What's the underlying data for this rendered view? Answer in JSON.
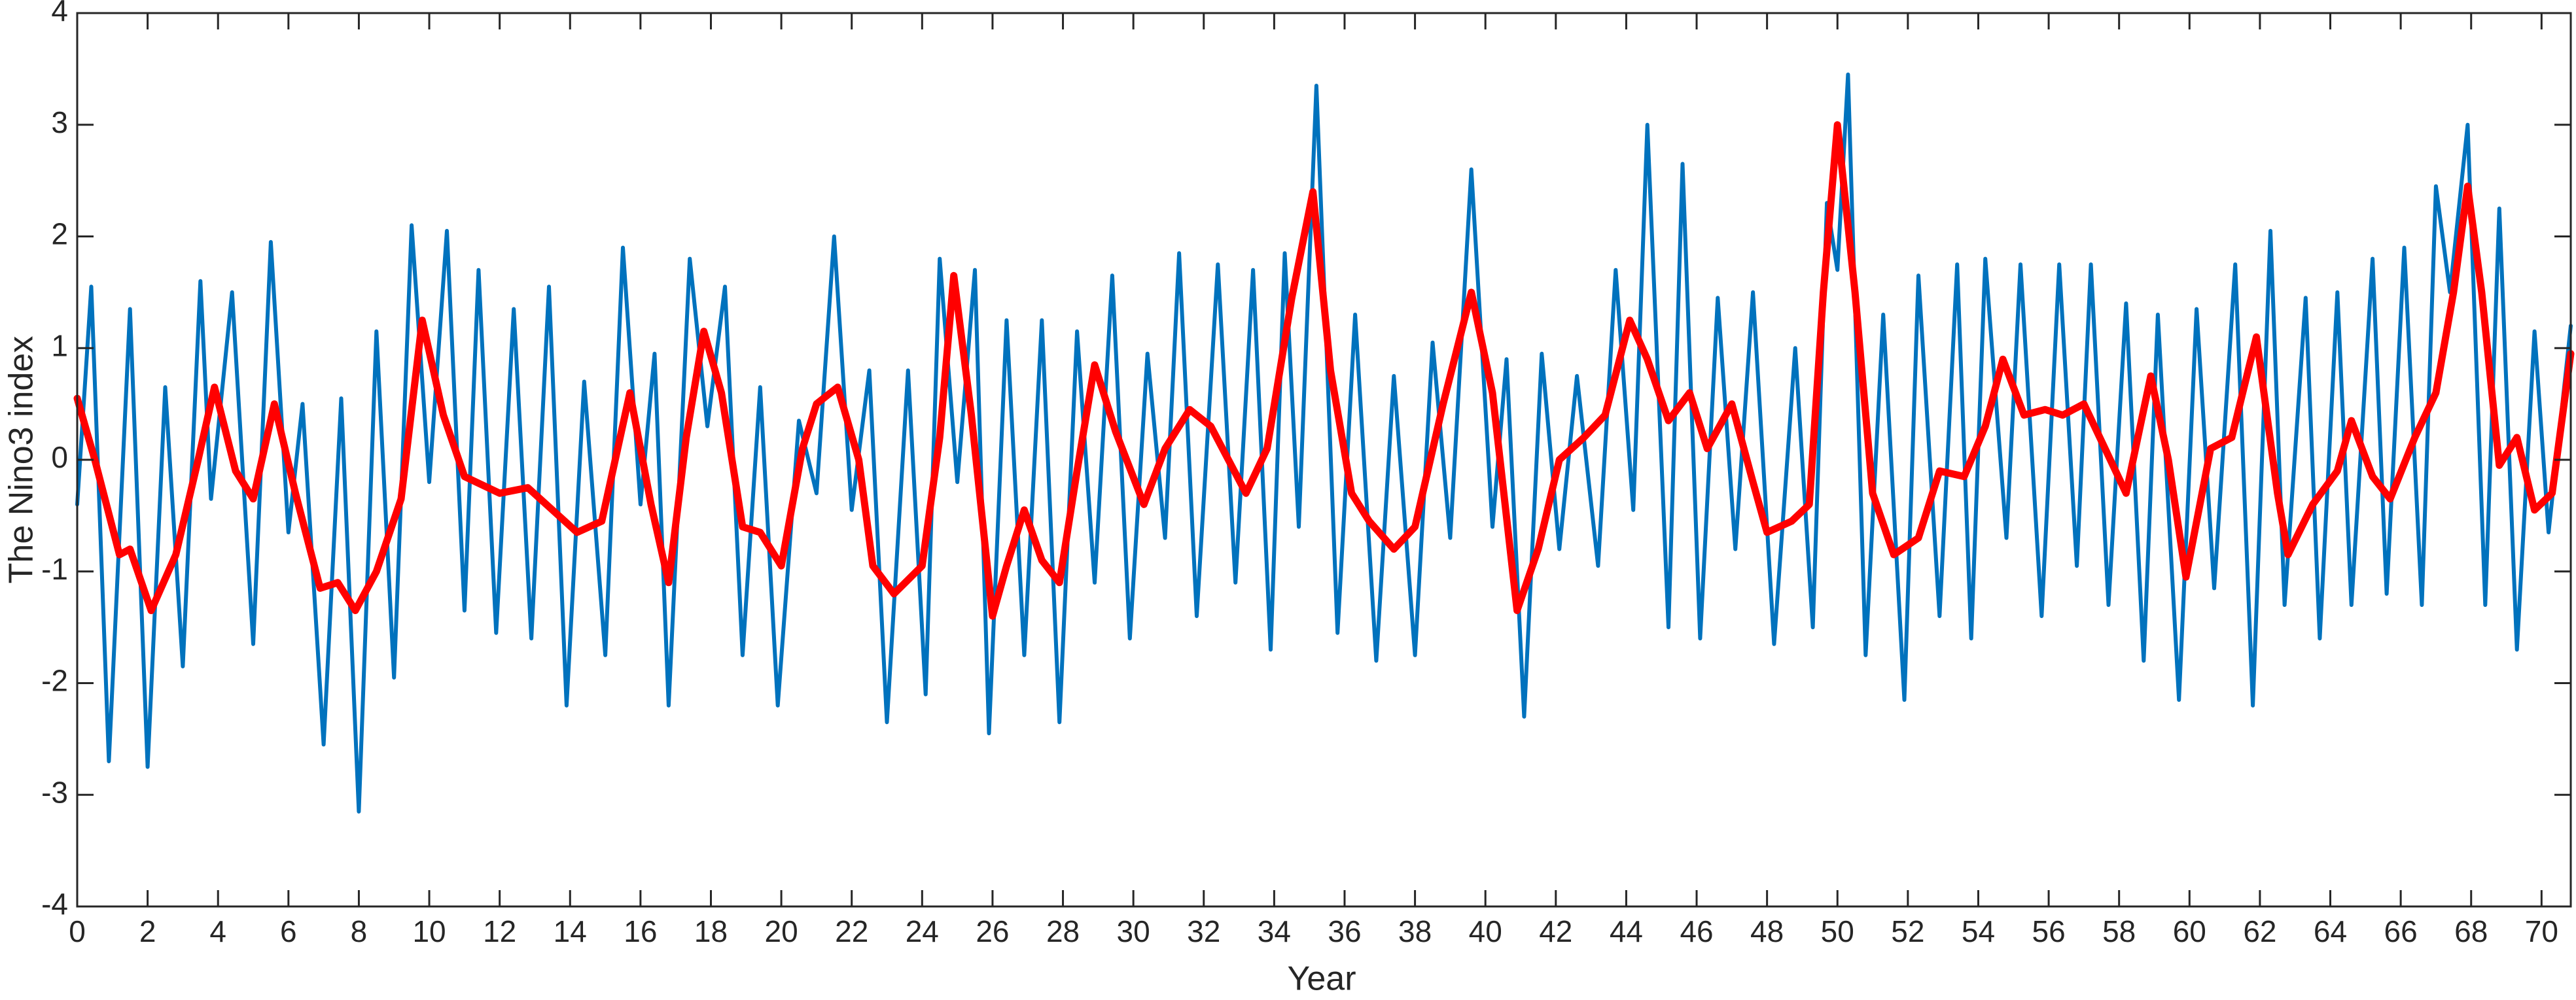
{
  "chart_data": {
    "type": "line",
    "xlabel": "Year",
    "ylabel": "The Nino3 index",
    "xlim": [
      0,
      70.83
    ],
    "ylim": [
      -4,
      4
    ],
    "xticks": [
      0,
      2,
      4,
      6,
      8,
      10,
      12,
      14,
      16,
      18,
      20,
      22,
      24,
      26,
      28,
      30,
      32,
      34,
      36,
      38,
      40,
      42,
      44,
      46,
      48,
      50,
      52,
      54,
      56,
      58,
      60,
      62,
      64,
      66,
      68,
      70
    ],
    "yticks": [
      -4,
      -3,
      -2,
      -1,
      0,
      1,
      2,
      3,
      4
    ],
    "series": [
      {
        "color": "#0072BD",
        "width": 6,
        "x": [
          0,
          0.4,
          0.9,
          1.5,
          2.0,
          2.5,
          3.0,
          3.5,
          3.8,
          4.4,
          5.0,
          5.5,
          6.0,
          6.4,
          7.0,
          7.5,
          8.0,
          8.5,
          9.0,
          9.5,
          10.0,
          10.5,
          11.0,
          11.4,
          11.9,
          12.4,
          12.9,
          13.4,
          13.9,
          14.4,
          15.0,
          15.5,
          16.0,
          16.4,
          16.8,
          17.4,
          17.9,
          18.4,
          18.9,
          19.4,
          19.9,
          20.5,
          21.0,
          21.5,
          22.0,
          22.5,
          23.0,
          23.6,
          24.1,
          24.5,
          25.0,
          25.5,
          25.9,
          26.4,
          26.9,
          27.4,
          27.9,
          28.4,
          28.9,
          29.4,
          29.9,
          30.4,
          30.9,
          31.3,
          31.8,
          32.4,
          32.9,
          33.4,
          33.9,
          34.3,
          34.7,
          35.2,
          35.8,
          36.3,
          36.9,
          37.4,
          38.0,
          38.5,
          39.0,
          39.6,
          40.2,
          40.6,
          41.1,
          41.6,
          42.1,
          42.6,
          43.2,
          43.7,
          44.2,
          44.6,
          45.2,
          45.6,
          46.1,
          46.6,
          47.1,
          47.6,
          48.2,
          48.8,
          49.3,
          49.7,
          50.0,
          50.3,
          50.8,
          51.3,
          51.9,
          52.3,
          52.9,
          53.4,
          53.8,
          54.2,
          54.8,
          55.2,
          55.8,
          56.3,
          56.8,
          57.2,
          57.7,
          58.2,
          58.7,
          59.1,
          59.7,
          60.2,
          60.7,
          61.3,
          61.8,
          62.3,
          62.7,
          63.3,
          63.7,
          64.2,
          64.6,
          65.2,
          65.6,
          66.1,
          66.6,
          67.0,
          67.4,
          67.9,
          68.4,
          68.8,
          69.3,
          69.8,
          70.2,
          70.83
        ],
        "values": [
          -0.4,
          1.55,
          -2.7,
          1.35,
          -2.75,
          0.65,
          -1.85,
          1.6,
          -0.35,
          1.5,
          -1.65,
          1.95,
          -0.65,
          0.5,
          -2.55,
          0.55,
          -3.15,
          1.15,
          -1.95,
          2.1,
          -0.2,
          2.05,
          -1.35,
          1.7,
          -1.55,
          1.35,
          -1.6,
          1.55,
          -2.2,
          0.7,
          -1.75,
          1.9,
          -0.4,
          0.95,
          -2.2,
          1.8,
          0.3,
          1.55,
          -1.75,
          0.65,
          -2.2,
          0.35,
          -0.3,
          2.0,
          -0.45,
          0.8,
          -2.35,
          0.8,
          -2.1,
          1.8,
          -0.2,
          1.7,
          -2.45,
          1.25,
          -1.75,
          1.25,
          -2.35,
          1.15,
          -1.1,
          1.65,
          -1.6,
          0.95,
          -0.7,
          1.85,
          -1.4,
          1.75,
          -1.1,
          1.7,
          -1.7,
          1.85,
          -0.6,
          3.35,
          -1.55,
          1.3,
          -1.8,
          0.75,
          -1.75,
          1.05,
          -0.7,
          2.6,
          -0.6,
          0.9,
          -2.3,
          0.95,
          -0.8,
          0.75,
          -0.95,
          1.7,
          -0.45,
          3.0,
          -1.5,
          2.65,
          -1.6,
          1.45,
          -0.8,
          1.5,
          -1.65,
          1.0,
          -1.5,
          2.3,
          1.7,
          3.45,
          -1.75,
          1.3,
          -2.15,
          1.65,
          -1.4,
          1.75,
          -1.6,
          1.8,
          -0.7,
          1.75,
          -1.4,
          1.75,
          -0.95,
          1.75,
          -1.3,
          1.4,
          -1.8,
          1.3,
          -2.15,
          1.35,
          -1.15,
          1.75,
          -2.2,
          2.05,
          -1.3,
          1.45,
          -1.6,
          1.5,
          -1.3,
          1.8,
          -1.2,
          1.9,
          -1.3,
          2.45,
          1.5,
          3.0,
          -1.3,
          2.25,
          -1.7,
          1.15,
          -0.65,
          1.2
        ]
      },
      {
        "color": "#FF0000",
        "width": 11,
        "x": [
          0,
          0.5,
          1.2,
          1.5,
          2.1,
          2.8,
          3.4,
          3.9,
          4.5,
          5.0,
          5.6,
          6.2,
          6.9,
          7.4,
          7.9,
          8.5,
          9.2,
          9.8,
          10.4,
          11.0,
          12.0,
          12.8,
          13.5,
          14.2,
          14.9,
          15.7,
          16.3,
          16.8,
          17.3,
          17.8,
          18.3,
          18.9,
          19.4,
          20.0,
          20.6,
          21.0,
          21.6,
          22.2,
          22.6,
          23.2,
          24.0,
          24.5,
          24.9,
          25.4,
          26.0,
          26.4,
          26.9,
          27.4,
          27.9,
          28.4,
          28.9,
          29.5,
          30.3,
          30.9,
          31.6,
          32.2,
          33.2,
          33.8,
          34.5,
          35.1,
          35.6,
          36.2,
          36.7,
          37.4,
          38.0,
          38.8,
          39.6,
          40.2,
          40.9,
          41.5,
          42.1,
          42.8,
          43.4,
          44.1,
          44.6,
          45.2,
          45.8,
          46.3,
          47.0,
          47.6,
          48.0,
          48.7,
          49.2,
          49.6,
          50.0,
          50.5,
          51.0,
          51.6,
          52.3,
          52.9,
          53.6,
          54.2,
          54.7,
          55.3,
          55.9,
          56.4,
          57.0,
          57.6,
          58.2,
          58.9,
          59.4,
          59.9,
          60.6,
          61.2,
          61.9,
          62.5,
          62.8,
          63.5,
          64.2,
          64.6,
          65.2,
          65.7,
          66.4,
          67.0,
          67.5,
          67.9,
          68.3,
          68.8,
          69.3,
          69.8,
          70.3,
          70.83
        ],
        "values": [
          0.55,
          0,
          -0.85,
          -0.8,
          -1.35,
          -0.85,
          -0.05,
          0.65,
          -0.1,
          -0.35,
          0.5,
          -0.3,
          -1.15,
          -1.1,
          -1.35,
          -1.0,
          -0.35,
          1.25,
          0.4,
          -0.15,
          -0.3,
          -0.25,
          -0.45,
          -0.65,
          -0.55,
          0.6,
          -0.4,
          -1.1,
          0.2,
          1.15,
          0.6,
          -0.6,
          -0.65,
          -0.95,
          0.1,
          0.5,
          0.65,
          0,
          -0.95,
          -1.2,
          -0.95,
          0.2,
          1.65,
          0.4,
          -1.4,
          -0.95,
          -0.45,
          -0.9,
          -1.1,
          -0.1,
          0.85,
          0.25,
          -0.4,
          0.1,
          0.45,
          0.3,
          -0.3,
          0.1,
          1.45,
          2.4,
          0.8,
          -0.3,
          -0.55,
          -0.8,
          -0.6,
          0.5,
          1.5,
          0.6,
          -1.35,
          -0.8,
          0,
          0.2,
          0.4,
          1.25,
          0.9,
          0.35,
          0.6,
          0.1,
          0.5,
          -0.2,
          -0.65,
          -0.55,
          -0.4,
          1.5,
          3.0,
          1.5,
          -0.3,
          -0.85,
          -0.7,
          -0.1,
          -0.15,
          0.3,
          0.9,
          0.4,
          0.45,
          0.4,
          0.5,
          0.1,
          -0.3,
          0.75,
          0,
          -1.05,
          0.1,
          0.2,
          1.1,
          -0.3,
          -0.85,
          -0.4,
          -0.1,
          0.35,
          -0.15,
          -0.35,
          0.2,
          0.6,
          1.5,
          2.45,
          1.5,
          -0.05,
          0.2,
          -0.45,
          -0.3,
          0.95
        ]
      }
    ]
  }
}
